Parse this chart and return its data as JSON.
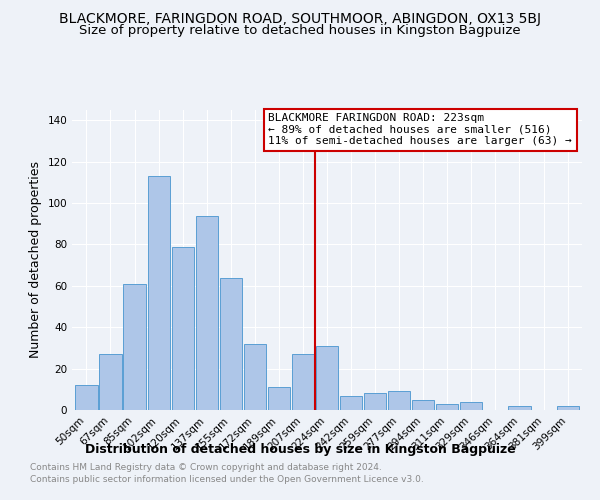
{
  "title": "BLACKMORE, FARINGDON ROAD, SOUTHMOOR, ABINGDON, OX13 5BJ",
  "subtitle": "Size of property relative to detached houses in Kingston Bagpuize",
  "xlabel": "Distribution of detached houses by size in Kingston Bagpuize",
  "ylabel": "Number of detached properties",
  "bin_labels": [
    "50sqm",
    "67sqm",
    "85sqm",
    "102sqm",
    "120sqm",
    "137sqm",
    "155sqm",
    "172sqm",
    "189sqm",
    "207sqm",
    "224sqm",
    "242sqm",
    "259sqm",
    "277sqm",
    "294sqm",
    "311sqm",
    "329sqm",
    "346sqm",
    "364sqm",
    "381sqm",
    "399sqm"
  ],
  "bar_heights": [
    12,
    27,
    61,
    113,
    79,
    94,
    64,
    32,
    11,
    27,
    31,
    7,
    8,
    9,
    5,
    3,
    4,
    0,
    2,
    0,
    2
  ],
  "bar_color": "#aec6e8",
  "bar_edge_color": "#5a9fd4",
  "vline_x": 9.5,
  "vline_color": "#cc0000",
  "ylim": [
    0,
    145
  ],
  "yticks": [
    0,
    20,
    40,
    60,
    80,
    100,
    120,
    140
  ],
  "annotation_title": "BLACKMORE FARINGDON ROAD: 223sqm",
  "annotation_line1": "← 89% of detached houses are smaller (516)",
  "annotation_line2": "11% of semi-detached houses are larger (63) →",
  "footer1": "Contains HM Land Registry data © Crown copyright and database right 2024.",
  "footer2": "Contains public sector information licensed under the Open Government Licence v3.0.",
  "background_color": "#eef2f8",
  "grid_color": "#ffffff",
  "title_fontsize": 10,
  "subtitle_fontsize": 9.5,
  "xlabel_fontsize": 9,
  "ylabel_fontsize": 9,
  "tick_fontsize": 7.5,
  "annot_fontsize": 8,
  "footer_fontsize": 6.5
}
